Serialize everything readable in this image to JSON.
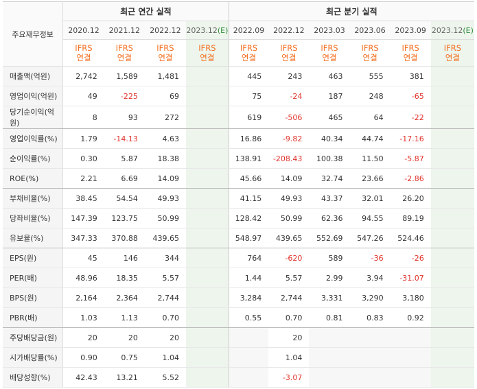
{
  "header": {
    "row_label_title": "주요재무정보",
    "annual_title": "최근 연간 실적",
    "quarter_title": "최근 분기 실적"
  },
  "annual_periods": [
    {
      "date": "2020.12",
      "est": "",
      "ifrs1": "IFRS",
      "ifrs2": "연결"
    },
    {
      "date": "2021.12",
      "est": "",
      "ifrs1": "IFRS",
      "ifrs2": "연결"
    },
    {
      "date": "2022.12",
      "est": "",
      "ifrs1": "IFRS",
      "ifrs2": "연결"
    },
    {
      "date": "2023.12",
      "est": "(E)",
      "ifrs1": "IFRS",
      "ifrs2": "연결"
    }
  ],
  "quarter_periods": [
    {
      "date": "2022.09",
      "est": "",
      "ifrs1": "IFRS",
      "ifrs2": "연결"
    },
    {
      "date": "2022.12",
      "est": "",
      "ifrs1": "IFRS",
      "ifrs2": "연결"
    },
    {
      "date": "2023.03",
      "est": "",
      "ifrs1": "IFRS",
      "ifrs2": "연결"
    },
    {
      "date": "2023.06",
      "est": "",
      "ifrs1": "IFRS",
      "ifrs2": "연결"
    },
    {
      "date": "2023.09",
      "est": "",
      "ifrs1": "IFRS",
      "ifrs2": "연결"
    },
    {
      "date": "2023.12",
      "est": "(E)",
      "ifrs1": "IFRS",
      "ifrs2": "연결"
    }
  ],
  "rows": [
    {
      "label": "매출액(억원)",
      "annual": [
        "2,742",
        "1,589",
        "1,481",
        ""
      ],
      "quarter": [
        "445",
        "243",
        "463",
        "555",
        "381",
        ""
      ]
    },
    {
      "label": "영업이익(억원)",
      "annual": [
        "49",
        "-225",
        "69",
        ""
      ],
      "quarter": [
        "75",
        "-24",
        "187",
        "248",
        "-65",
        ""
      ]
    },
    {
      "label": "당기순이익(억원)",
      "annual": [
        "8",
        "93",
        "272",
        ""
      ],
      "quarter": [
        "619",
        "-506",
        "465",
        "64",
        "-22",
        ""
      ]
    },
    {
      "label": "영업이익률(%)",
      "annual": [
        "1.79",
        "-14.13",
        "4.63",
        ""
      ],
      "quarter": [
        "16.86",
        "-9.82",
        "40.34",
        "44.74",
        "-17.16",
        ""
      ]
    },
    {
      "label": "순이익률(%)",
      "annual": [
        "0.30",
        "5.87",
        "18.38",
        ""
      ],
      "quarter": [
        "138.91",
        "-208.43",
        "100.38",
        "11.50",
        "-5.87",
        ""
      ]
    },
    {
      "label": "ROE(%)",
      "annual": [
        "2.21",
        "6.69",
        "14.09",
        ""
      ],
      "quarter": [
        "45.66",
        "14.09",
        "32.74",
        "23.66",
        "-2.86",
        ""
      ]
    },
    {
      "label": "부채비율(%)",
      "annual": [
        "38.45",
        "54.54",
        "49.93",
        ""
      ],
      "quarter": [
        "41.15",
        "49.93",
        "43.37",
        "32.01",
        "26.20",
        ""
      ]
    },
    {
      "label": "당좌비율(%)",
      "annual": [
        "147.39",
        "123.75",
        "50.99",
        ""
      ],
      "quarter": [
        "128.42",
        "50.99",
        "62.36",
        "94.55",
        "89.19",
        ""
      ]
    },
    {
      "label": "유보율(%)",
      "annual": [
        "347.33",
        "370.88",
        "439.65",
        ""
      ],
      "quarter": [
        "548.97",
        "439.65",
        "552.69",
        "547.26",
        "524.46",
        ""
      ]
    },
    {
      "label": "EPS(원)",
      "annual": [
        "45",
        "146",
        "344",
        ""
      ],
      "quarter": [
        "764",
        "-620",
        "589",
        "-36",
        "-26",
        ""
      ]
    },
    {
      "label": "PER(배)",
      "annual": [
        "48.96",
        "18.35",
        "5.57",
        ""
      ],
      "quarter": [
        "1.44",
        "5.57",
        "2.99",
        "3.94",
        "-31.07",
        ""
      ]
    },
    {
      "label": "BPS(원)",
      "annual": [
        "2,164",
        "2,364",
        "2,744",
        ""
      ],
      "quarter": [
        "3,284",
        "2,744",
        "3,331",
        "3,290",
        "3,180",
        ""
      ]
    },
    {
      "label": "PBR(배)",
      "annual": [
        "1.03",
        "1.13",
        "0.70",
        ""
      ],
      "quarter": [
        "0.55",
        "0.70",
        "0.81",
        "0.83",
        "0.92",
        ""
      ]
    },
    {
      "label": "주당배당금(원)",
      "annual": [
        "20",
        "20",
        "20",
        ""
      ],
      "quarter": [
        "",
        "20",
        "",
        "",
        "",
        ""
      ]
    },
    {
      "label": "시가배당률(%)",
      "annual": [
        "0.90",
        "0.75",
        "1.04",
        ""
      ],
      "quarter": [
        "",
        "1.04",
        "",
        "",
        "",
        ""
      ]
    },
    {
      "label": "배당성향(%)",
      "annual": [
        "42.43",
        "13.21",
        "5.52",
        ""
      ],
      "quarter": [
        "",
        "-3.07",
        "",
        "",
        "",
        ""
      ]
    }
  ],
  "group_ends": [
    2,
    5,
    8,
    12
  ]
}
